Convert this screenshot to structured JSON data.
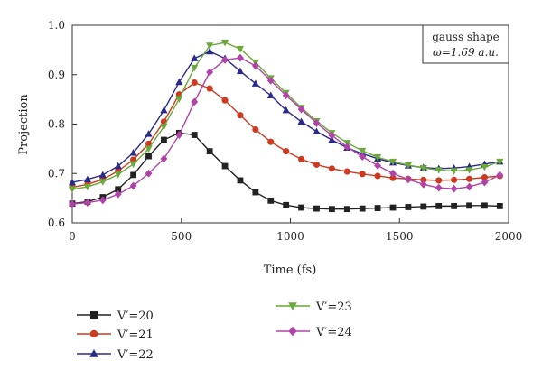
{
  "chart_data": {
    "type": "line",
    "xlabel": "Time (fs)",
    "ylabel": "Projection",
    "xlim": [
      0,
      2000
    ],
    "ylim": [
      0.6,
      1.0
    ],
    "x_ticks": [
      0,
      500,
      1000,
      1500,
      2000
    ],
    "x_tick_labels": [
      "0",
      "500",
      "1000",
      "1500",
      "2000"
    ],
    "y_ticks": [
      0.6,
      0.7,
      0.8,
      0.9,
      1.0
    ],
    "y_tick_labels": [
      "0.6",
      "0.7",
      "0.8",
      "0.9",
      "1.0"
    ],
    "grid": false,
    "legend_position": "bottom",
    "annotation": {
      "line1": "gauss shape",
      "line2": "ω=1.69 a.u."
    },
    "x": [
      0,
      70,
      140,
      210,
      280,
      350,
      420,
      490,
      560,
      630,
      700,
      770,
      840,
      910,
      980,
      1050,
      1120,
      1190,
      1260,
      1330,
      1400,
      1470,
      1540,
      1610,
      1680,
      1750,
      1820,
      1890,
      1960
    ],
    "series": [
      {
        "name": "V′=20",
        "color": "#222222",
        "marker": "square",
        "values": [
          0.639,
          0.643,
          0.652,
          0.668,
          0.697,
          0.735,
          0.768,
          0.782,
          0.778,
          0.745,
          0.715,
          0.686,
          0.662,
          0.645,
          0.636,
          0.631,
          0.629,
          0.628,
          0.628,
          0.629,
          0.63,
          0.631,
          0.632,
          0.633,
          0.634,
          0.634,
          0.635,
          0.635,
          0.634
        ]
      },
      {
        "name": "V′=21",
        "color": "#cc3a1f",
        "marker": "circle",
        "values": [
          0.672,
          0.678,
          0.688,
          0.705,
          0.728,
          0.76,
          0.805,
          0.86,
          0.884,
          0.872,
          0.848,
          0.818,
          0.789,
          0.764,
          0.745,
          0.729,
          0.718,
          0.71,
          0.704,
          0.699,
          0.695,
          0.691,
          0.689,
          0.687,
          0.686,
          0.687,
          0.689,
          0.692,
          0.695
        ]
      },
      {
        "name": "V′=22",
        "color": "#2a2a8a",
        "marker": "triangle-up",
        "values": [
          0.682,
          0.688,
          0.697,
          0.715,
          0.742,
          0.78,
          0.828,
          0.885,
          0.933,
          0.947,
          0.933,
          0.907,
          0.882,
          0.858,
          0.828,
          0.805,
          0.785,
          0.768,
          0.752,
          0.74,
          0.73,
          0.722,
          0.716,
          0.712,
          0.71,
          0.711,
          0.714,
          0.719,
          0.724
        ]
      },
      {
        "name": "V′=23",
        "color": "#6aa93a",
        "marker": "triangle-down",
        "values": [
          0.668,
          0.673,
          0.683,
          0.698,
          0.719,
          0.75,
          0.795,
          0.851,
          0.914,
          0.959,
          0.965,
          0.952,
          0.925,
          0.893,
          0.863,
          0.833,
          0.806,
          0.782,
          0.762,
          0.746,
          0.733,
          0.724,
          0.717,
          0.711,
          0.707,
          0.705,
          0.707,
          0.713,
          0.724
        ]
      },
      {
        "name": "V′=24",
        "color": "#b043a8",
        "marker": "diamond",
        "values": [
          0.638,
          0.641,
          0.646,
          0.658,
          0.675,
          0.7,
          0.73,
          0.778,
          0.845,
          0.905,
          0.93,
          0.934,
          0.918,
          0.888,
          0.858,
          0.83,
          0.802,
          0.777,
          0.754,
          0.734,
          0.716,
          0.7,
          0.688,
          0.678,
          0.671,
          0.669,
          0.673,
          0.682,
          0.697
        ]
      }
    ]
  }
}
